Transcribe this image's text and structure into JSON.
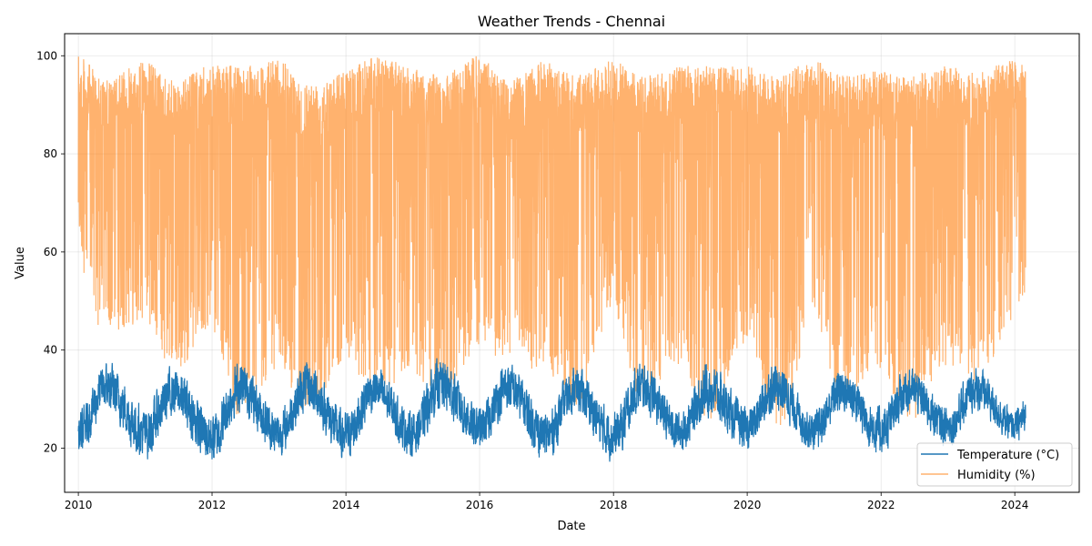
{
  "chart_data": {
    "type": "line",
    "title": "Weather Trends - Chennai",
    "xlabel": "Date",
    "ylabel": "Value",
    "x_range": [
      "2009-10-18",
      "2024-12-18"
    ],
    "x_ticks": [
      "2010",
      "2012",
      "2014",
      "2016",
      "2018",
      "2020",
      "2022",
      "2024"
    ],
    "ylim": [
      11,
      104.5
    ],
    "y_ticks": [
      20,
      40,
      60,
      80,
      100
    ],
    "grid": true,
    "legend_position": "bottom-right",
    "series": [
      {
        "name": "Temperature (°C)",
        "color": "#1f77b4",
        "date_range": [
          "2010-01-01",
          "2024-03-01"
        ],
        "sampling": "daily",
        "pattern": "annual cycle; roughly 18–27 in January lows, peaking 35–39 around May–June",
        "monthly_envelope": [
          {
            "month": "2010-01",
            "low": 18,
            "high": 28
          },
          {
            "month": "2010-06",
            "low": 27,
            "high": 38
          },
          {
            "month": "2011-01",
            "low": 17,
            "high": 29
          },
          {
            "month": "2011-06",
            "low": 26,
            "high": 37
          },
          {
            "month": "2012-01",
            "low": 16,
            "high": 28
          },
          {
            "month": "2012-06",
            "low": 27,
            "high": 38
          },
          {
            "month": "2013-01",
            "low": 18,
            "high": 28
          },
          {
            "month": "2013-06",
            "low": 27,
            "high": 38
          },
          {
            "month": "2014-01",
            "low": 17,
            "high": 28
          },
          {
            "month": "2014-06",
            "low": 27,
            "high": 37
          },
          {
            "month": "2015-01",
            "low": 18,
            "high": 28
          },
          {
            "month": "2015-06",
            "low": 27,
            "high": 39
          },
          {
            "month": "2016-01",
            "low": 19,
            "high": 29
          },
          {
            "month": "2016-06",
            "low": 27,
            "high": 38
          },
          {
            "month": "2017-01",
            "low": 17,
            "high": 28
          },
          {
            "month": "2017-06",
            "low": 27,
            "high": 37
          },
          {
            "month": "2018-01",
            "low": 17,
            "high": 28
          },
          {
            "month": "2018-06",
            "low": 27,
            "high": 38
          },
          {
            "month": "2019-01",
            "low": 19,
            "high": 28
          },
          {
            "month": "2019-06",
            "low": 26,
            "high": 38
          },
          {
            "month": "2020-01",
            "low": 19,
            "high": 29
          },
          {
            "month": "2020-06",
            "low": 27,
            "high": 38
          },
          {
            "month": "2021-01",
            "low": 19,
            "high": 28
          },
          {
            "month": "2021-06",
            "low": 27,
            "high": 37
          },
          {
            "month": "2022-01",
            "low": 18,
            "high": 29
          },
          {
            "month": "2022-06",
            "low": 27,
            "high": 37
          },
          {
            "month": "2023-01",
            "low": 20,
            "high": 29
          },
          {
            "month": "2023-06",
            "low": 27,
            "high": 37
          },
          {
            "month": "2024-01",
            "low": 21,
            "high": 28
          },
          {
            "month": "2024-03",
            "low": 22,
            "high": 31
          }
        ]
      },
      {
        "name": "Humidity (%)",
        "color": "#ff7f0e",
        "date_range": [
          "2010-01-01",
          "2024-03-01"
        ],
        "sampling": "daily",
        "pattern": "noisy daily values ranging roughly 25–100, typically upper band 95–100 with dips to 30–50",
        "monthly_envelope": [
          {
            "month": "2010-01",
            "low": 57,
            "high": 100
          },
          {
            "month": "2010-06",
            "low": 42,
            "high": 95
          },
          {
            "month": "2011-01",
            "low": 46,
            "high": 99
          },
          {
            "month": "2011-06",
            "low": 35,
            "high": 95
          },
          {
            "month": "2012-01",
            "low": 44,
            "high": 98
          },
          {
            "month": "2012-06",
            "low": 25,
            "high": 98
          },
          {
            "month": "2013-01",
            "low": 36,
            "high": 99
          },
          {
            "month": "2013-06",
            "low": 27,
            "high": 95
          },
          {
            "month": "2014-01",
            "low": 38,
            "high": 97
          },
          {
            "month": "2014-06",
            "low": 30,
            "high": 100
          },
          {
            "month": "2015-01",
            "low": 35,
            "high": 98
          },
          {
            "month": "2015-06",
            "low": 30,
            "high": 96
          },
          {
            "month": "2016-01",
            "low": 40,
            "high": 100
          },
          {
            "month": "2016-06",
            "low": 38,
            "high": 95
          },
          {
            "month": "2017-01",
            "low": 35,
            "high": 99
          },
          {
            "month": "2017-06",
            "low": 28,
            "high": 96
          },
          {
            "month": "2018-01",
            "low": 47,
            "high": 99
          },
          {
            "month": "2018-06",
            "low": 30,
            "high": 96
          },
          {
            "month": "2019-01",
            "low": 36,
            "high": 98
          },
          {
            "month": "2019-06",
            "low": 25,
            "high": 98
          },
          {
            "month": "2020-01",
            "low": 41,
            "high": 98
          },
          {
            "month": "2020-06",
            "low": 22,
            "high": 96
          },
          {
            "month": "2021-01",
            "low": 45,
            "high": 99
          },
          {
            "month": "2021-06",
            "low": 30,
            "high": 96
          },
          {
            "month": "2022-01",
            "low": 35,
            "high": 97
          },
          {
            "month": "2022-06",
            "low": 25,
            "high": 96
          },
          {
            "month": "2023-01",
            "low": 37,
            "high": 98
          },
          {
            "month": "2023-06",
            "low": 33,
            "high": 97
          },
          {
            "month": "2024-01",
            "low": 46,
            "high": 99
          },
          {
            "month": "2024-03",
            "low": 50,
            "high": 99
          }
        ]
      }
    ]
  }
}
